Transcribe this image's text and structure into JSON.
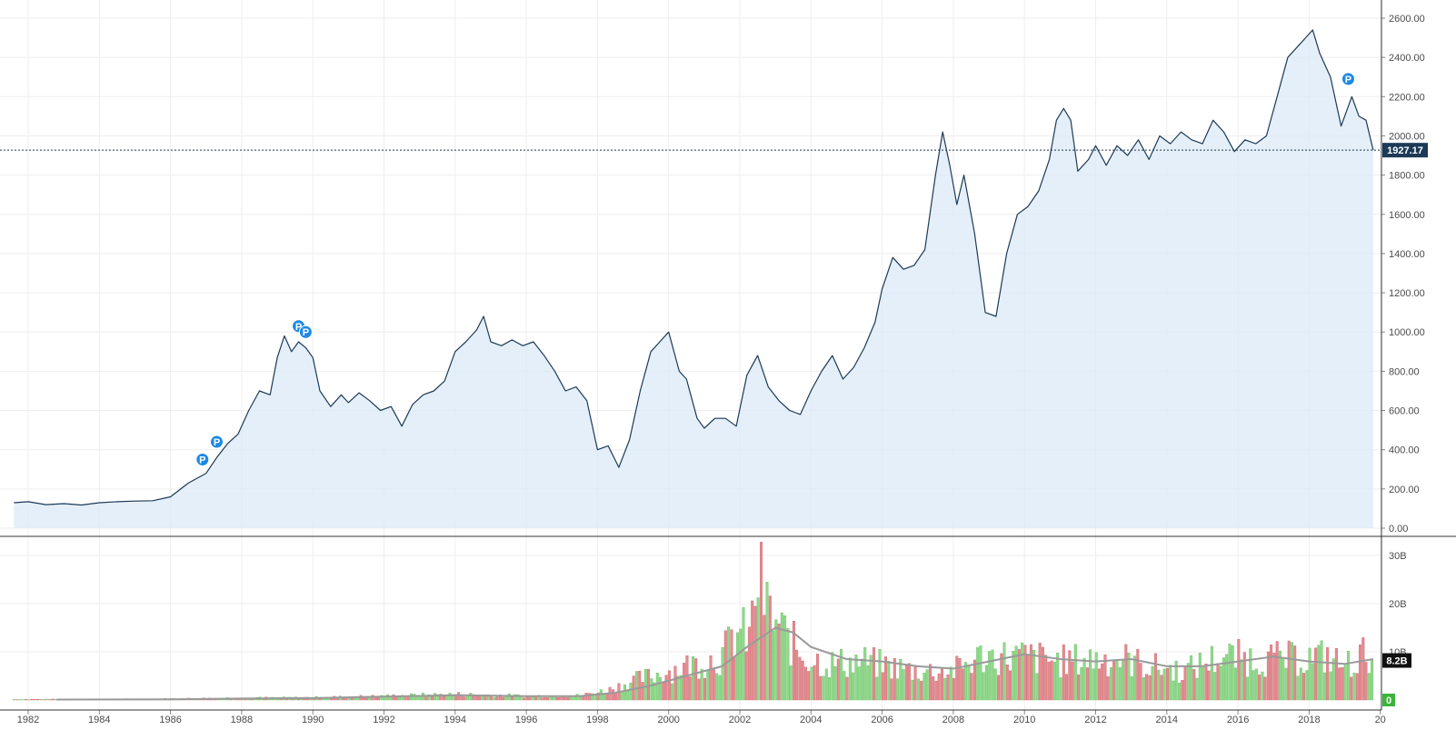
{
  "chart_data": {
    "type": "area",
    "colors": {
      "price_line": "#1c3a57",
      "price_fill": "#dce9f7",
      "grid": "#eeeeee",
      "axis": "#333333",
      "volume_up": "#8fd98a",
      "volume_down": "#e58a8f",
      "volume_ma": "#9a9a9a",
      "last_price_label": "#1c3a57",
      "volume_label": "#111111",
      "zero_badge": "#3cb43c",
      "event_marker": "#1e88e5"
    },
    "x_ticks": [
      "1982",
      "1984",
      "1986",
      "1988",
      "1990",
      "1992",
      "1994",
      "1996",
      "1998",
      "2000",
      "2002",
      "2004",
      "2006",
      "2008",
      "2010",
      "2012",
      "2014",
      "2016",
      "2018",
      "20"
    ],
    "price_panel": {
      "y_ticks": [
        "2600.00",
        "2400.00",
        "2200.00",
        "2000.00",
        "1800.00",
        "1600.00",
        "1400.00",
        "1200.00",
        "1000.00",
        "800.00",
        "600.00",
        "400.00",
        "200.00",
        "0.00"
      ],
      "ylim": [
        0,
        2600
      ],
      "last_price_label": "1927.17",
      "last_price": 1927.17,
      "series": [
        {
          "x": 1981.6,
          "y": 130
        },
        {
          "x": 1982.0,
          "y": 135
        },
        {
          "x": 1982.5,
          "y": 120
        },
        {
          "x": 1983.0,
          "y": 125
        },
        {
          "x": 1983.5,
          "y": 118
        },
        {
          "x": 1984.0,
          "y": 130
        },
        {
          "x": 1984.5,
          "y": 135
        },
        {
          "x": 1985.0,
          "y": 138
        },
        {
          "x": 1985.5,
          "y": 140
        },
        {
          "x": 1986.0,
          "y": 160
        },
        {
          "x": 1986.5,
          "y": 230
        },
        {
          "x": 1987.0,
          "y": 280
        },
        {
          "x": 1987.3,
          "y": 360
        },
        {
          "x": 1987.6,
          "y": 430
        },
        {
          "x": 1987.9,
          "y": 480
        },
        {
          "x": 1988.2,
          "y": 600
        },
        {
          "x": 1988.5,
          "y": 700
        },
        {
          "x": 1988.8,
          "y": 680
        },
        {
          "x": 1989.0,
          "y": 870
        },
        {
          "x": 1989.2,
          "y": 980
        },
        {
          "x": 1989.4,
          "y": 900
        },
        {
          "x": 1989.6,
          "y": 950
        },
        {
          "x": 1989.8,
          "y": 920
        },
        {
          "x": 1990.0,
          "y": 870
        },
        {
          "x": 1990.2,
          "y": 700
        },
        {
          "x": 1990.5,
          "y": 620
        },
        {
          "x": 1990.8,
          "y": 680
        },
        {
          "x": 1991.0,
          "y": 640
        },
        {
          "x": 1991.3,
          "y": 690
        },
        {
          "x": 1991.6,
          "y": 650
        },
        {
          "x": 1991.9,
          "y": 600
        },
        {
          "x": 1992.2,
          "y": 620
        },
        {
          "x": 1992.5,
          "y": 520
        },
        {
          "x": 1992.8,
          "y": 630
        },
        {
          "x": 1993.1,
          "y": 680
        },
        {
          "x": 1993.4,
          "y": 700
        },
        {
          "x": 1993.7,
          "y": 750
        },
        {
          "x": 1994.0,
          "y": 900
        },
        {
          "x": 1994.3,
          "y": 950
        },
        {
          "x": 1994.6,
          "y": 1010
        },
        {
          "x": 1994.8,
          "y": 1080
        },
        {
          "x": 1995.0,
          "y": 950
        },
        {
          "x": 1995.3,
          "y": 930
        },
        {
          "x": 1995.6,
          "y": 960
        },
        {
          "x": 1995.9,
          "y": 930
        },
        {
          "x": 1996.2,
          "y": 950
        },
        {
          "x": 1996.5,
          "y": 880
        },
        {
          "x": 1996.8,
          "y": 800
        },
        {
          "x": 1997.1,
          "y": 700
        },
        {
          "x": 1997.4,
          "y": 720
        },
        {
          "x": 1997.7,
          "y": 650
        },
        {
          "x": 1998.0,
          "y": 400
        },
        {
          "x": 1998.3,
          "y": 420
        },
        {
          "x": 1998.6,
          "y": 310
        },
        {
          "x": 1998.9,
          "y": 450
        },
        {
          "x": 1999.2,
          "y": 700
        },
        {
          "x": 1999.5,
          "y": 900
        },
        {
          "x": 1999.8,
          "y": 960
        },
        {
          "x": 2000.0,
          "y": 1000
        },
        {
          "x": 2000.3,
          "y": 800
        },
        {
          "x": 2000.5,
          "y": 760
        },
        {
          "x": 2000.8,
          "y": 560
        },
        {
          "x": 2001.0,
          "y": 510
        },
        {
          "x": 2001.3,
          "y": 560
        },
        {
          "x": 2001.6,
          "y": 560
        },
        {
          "x": 2001.9,
          "y": 520
        },
        {
          "x": 2002.2,
          "y": 780
        },
        {
          "x": 2002.5,
          "y": 880
        },
        {
          "x": 2002.8,
          "y": 720
        },
        {
          "x": 2003.1,
          "y": 650
        },
        {
          "x": 2003.4,
          "y": 600
        },
        {
          "x": 2003.7,
          "y": 580
        },
        {
          "x": 2004.0,
          "y": 700
        },
        {
          "x": 2004.3,
          "y": 800
        },
        {
          "x": 2004.6,
          "y": 880
        },
        {
          "x": 2004.9,
          "y": 760
        },
        {
          "x": 2005.2,
          "y": 820
        },
        {
          "x": 2005.5,
          "y": 920
        },
        {
          "x": 2005.8,
          "y": 1050
        },
        {
          "x": 2006.0,
          "y": 1220
        },
        {
          "x": 2006.3,
          "y": 1380
        },
        {
          "x": 2006.6,
          "y": 1320
        },
        {
          "x": 2006.9,
          "y": 1340
        },
        {
          "x": 2007.2,
          "y": 1420
        },
        {
          "x": 2007.5,
          "y": 1800
        },
        {
          "x": 2007.7,
          "y": 2020
        },
        {
          "x": 2007.9,
          "y": 1850
        },
        {
          "x": 2008.1,
          "y": 1650
        },
        {
          "x": 2008.3,
          "y": 1800
        },
        {
          "x": 2008.6,
          "y": 1500
        },
        {
          "x": 2008.9,
          "y": 1100
        },
        {
          "x": 2009.2,
          "y": 1080
        },
        {
          "x": 2009.5,
          "y": 1400
        },
        {
          "x": 2009.8,
          "y": 1600
        },
        {
          "x": 2010.1,
          "y": 1640
        },
        {
          "x": 2010.4,
          "y": 1720
        },
        {
          "x": 2010.7,
          "y": 1880
        },
        {
          "x": 2010.9,
          "y": 2080
        },
        {
          "x": 2011.1,
          "y": 2140
        },
        {
          "x": 2011.3,
          "y": 2080
        },
        {
          "x": 2011.5,
          "y": 1820
        },
        {
          "x": 2011.8,
          "y": 1880
        },
        {
          "x": 2012.0,
          "y": 1950
        },
        {
          "x": 2012.3,
          "y": 1850
        },
        {
          "x": 2012.6,
          "y": 1950
        },
        {
          "x": 2012.9,
          "y": 1900
        },
        {
          "x": 2013.2,
          "y": 1980
        },
        {
          "x": 2013.5,
          "y": 1880
        },
        {
          "x": 2013.8,
          "y": 2000
        },
        {
          "x": 2014.1,
          "y": 1960
        },
        {
          "x": 2014.4,
          "y": 2020
        },
        {
          "x": 2014.7,
          "y": 1980
        },
        {
          "x": 2015.0,
          "y": 1960
        },
        {
          "x": 2015.3,
          "y": 2080
        },
        {
          "x": 2015.6,
          "y": 2020
        },
        {
          "x": 2015.9,
          "y": 1920
        },
        {
          "x": 2016.2,
          "y": 1980
        },
        {
          "x": 2016.5,
          "y": 1960
        },
        {
          "x": 2016.8,
          "y": 2000
        },
        {
          "x": 2017.1,
          "y": 2200
        },
        {
          "x": 2017.4,
          "y": 2400
        },
        {
          "x": 2017.7,
          "y": 2460
        },
        {
          "x": 2017.9,
          "y": 2500
        },
        {
          "x": 2018.1,
          "y": 2540
        },
        {
          "x": 2018.3,
          "y": 2420
        },
        {
          "x": 2018.6,
          "y": 2300
        },
        {
          "x": 2018.9,
          "y": 2050
        },
        {
          "x": 2019.0,
          "y": 2100
        },
        {
          "x": 2019.2,
          "y": 2200
        },
        {
          "x": 2019.4,
          "y": 2100
        },
        {
          "x": 2019.6,
          "y": 2080
        },
        {
          "x": 2019.8,
          "y": 1927
        }
      ],
      "event_markers": [
        {
          "label": "P",
          "x": 1986.9,
          "y": 350
        },
        {
          "label": "P",
          "x": 1987.3,
          "y": 440
        },
        {
          "label": "P",
          "x": 1989.6,
          "y": 1030
        },
        {
          "label": "P",
          "x": 1989.8,
          "y": 1000
        },
        {
          "label": "P",
          "x": 2019.1,
          "y": 2290
        }
      ]
    },
    "volume_panel": {
      "y_ticks": [
        "30B",
        "20B",
        "10B"
      ],
      "ylim": [
        0,
        31
      ],
      "current_volume_label": "8.2B",
      "current_volume": 8.2,
      "zero_label": "0",
      "ma_series": [
        {
          "x": 1982.8,
          "y": 0.1
        },
        {
          "x": 1986.0,
          "y": 0.15
        },
        {
          "x": 1988.0,
          "y": 0.3
        },
        {
          "x": 1990.0,
          "y": 0.4
        },
        {
          "x": 1992.0,
          "y": 0.7
        },
        {
          "x": 1994.0,
          "y": 1.0
        },
        {
          "x": 1996.0,
          "y": 0.8
        },
        {
          "x": 1997.5,
          "y": 0.8
        },
        {
          "x": 1998.5,
          "y": 1.5
        },
        {
          "x": 1999.5,
          "y": 3.0
        },
        {
          "x": 2000.5,
          "y": 5.0
        },
        {
          "x": 2001.5,
          "y": 7.0
        },
        {
          "x": 2002.2,
          "y": 11.0
        },
        {
          "x": 2003.0,
          "y": 15.0
        },
        {
          "x": 2003.5,
          "y": 14.0
        },
        {
          "x": 2004.0,
          "y": 11.0
        },
        {
          "x": 2005.0,
          "y": 8.5
        },
        {
          "x": 2006.0,
          "y": 8.0
        },
        {
          "x": 2007.0,
          "y": 7.0
        },
        {
          "x": 2008.0,
          "y": 6.5
        },
        {
          "x": 2009.0,
          "y": 8.0
        },
        {
          "x": 2010.0,
          "y": 9.5
        },
        {
          "x": 2011.0,
          "y": 8.5
        },
        {
          "x": 2012.0,
          "y": 8.0
        },
        {
          "x": 2013.0,
          "y": 8.5
        },
        {
          "x": 2014.0,
          "y": 7.0
        },
        {
          "x": 2015.0,
          "y": 7.0
        },
        {
          "x": 2016.0,
          "y": 8.0
        },
        {
          "x": 2017.0,
          "y": 9.0
        },
        {
          "x": 2018.0,
          "y": 8.0
        },
        {
          "x": 2019.0,
          "y": 7.5
        },
        {
          "x": 2019.8,
          "y": 8.5
        }
      ],
      "volume_anchors": [
        [
          1981.6,
          0.12
        ],
        [
          1985.5,
          0.2
        ],
        [
          1987.5,
          0.4
        ],
        [
          1990.0,
          0.5
        ],
        [
          1992.0,
          0.8
        ],
        [
          1994.0,
          1.2
        ],
        [
          1996.0,
          0.8
        ],
        [
          1997.5,
          0.9
        ],
        [
          1998.3,
          2.0
        ],
        [
          1999.0,
          4.0
        ],
        [
          1999.8,
          5.5
        ],
        [
          2000.5,
          7.0
        ],
        [
          2001.5,
          9.0
        ],
        [
          2001.9,
          14.0
        ],
        [
          2002.3,
          13.0
        ],
        [
          2002.5,
          26.0
        ],
        [
          2002.8,
          18.0
        ],
        [
          2003.2,
          14.0
        ],
        [
          2003.8,
          9.0
        ],
        [
          2004.5,
          7.5
        ],
        [
          2005.5,
          8.0
        ],
        [
          2006.2,
          7.0
        ],
        [
          2007.0,
          6.0
        ],
        [
          2008.0,
          6.0
        ],
        [
          2008.8,
          9.0
        ],
        [
          2009.3,
          9.0
        ],
        [
          2010.0,
          9.0
        ],
        [
          2011.0,
          8.0
        ],
        [
          2012.0,
          8.5
        ],
        [
          2012.8,
          8.5
        ],
        [
          2013.5,
          7.0
        ],
        [
          2014.5,
          6.0
        ],
        [
          2015.5,
          9.0
        ],
        [
          2016.5,
          8.5
        ],
        [
          2017.5,
          8.5
        ],
        [
          2018.5,
          9.0
        ],
        [
          2019.0,
          7.0
        ],
        [
          2019.8,
          10.5
        ]
      ]
    }
  }
}
